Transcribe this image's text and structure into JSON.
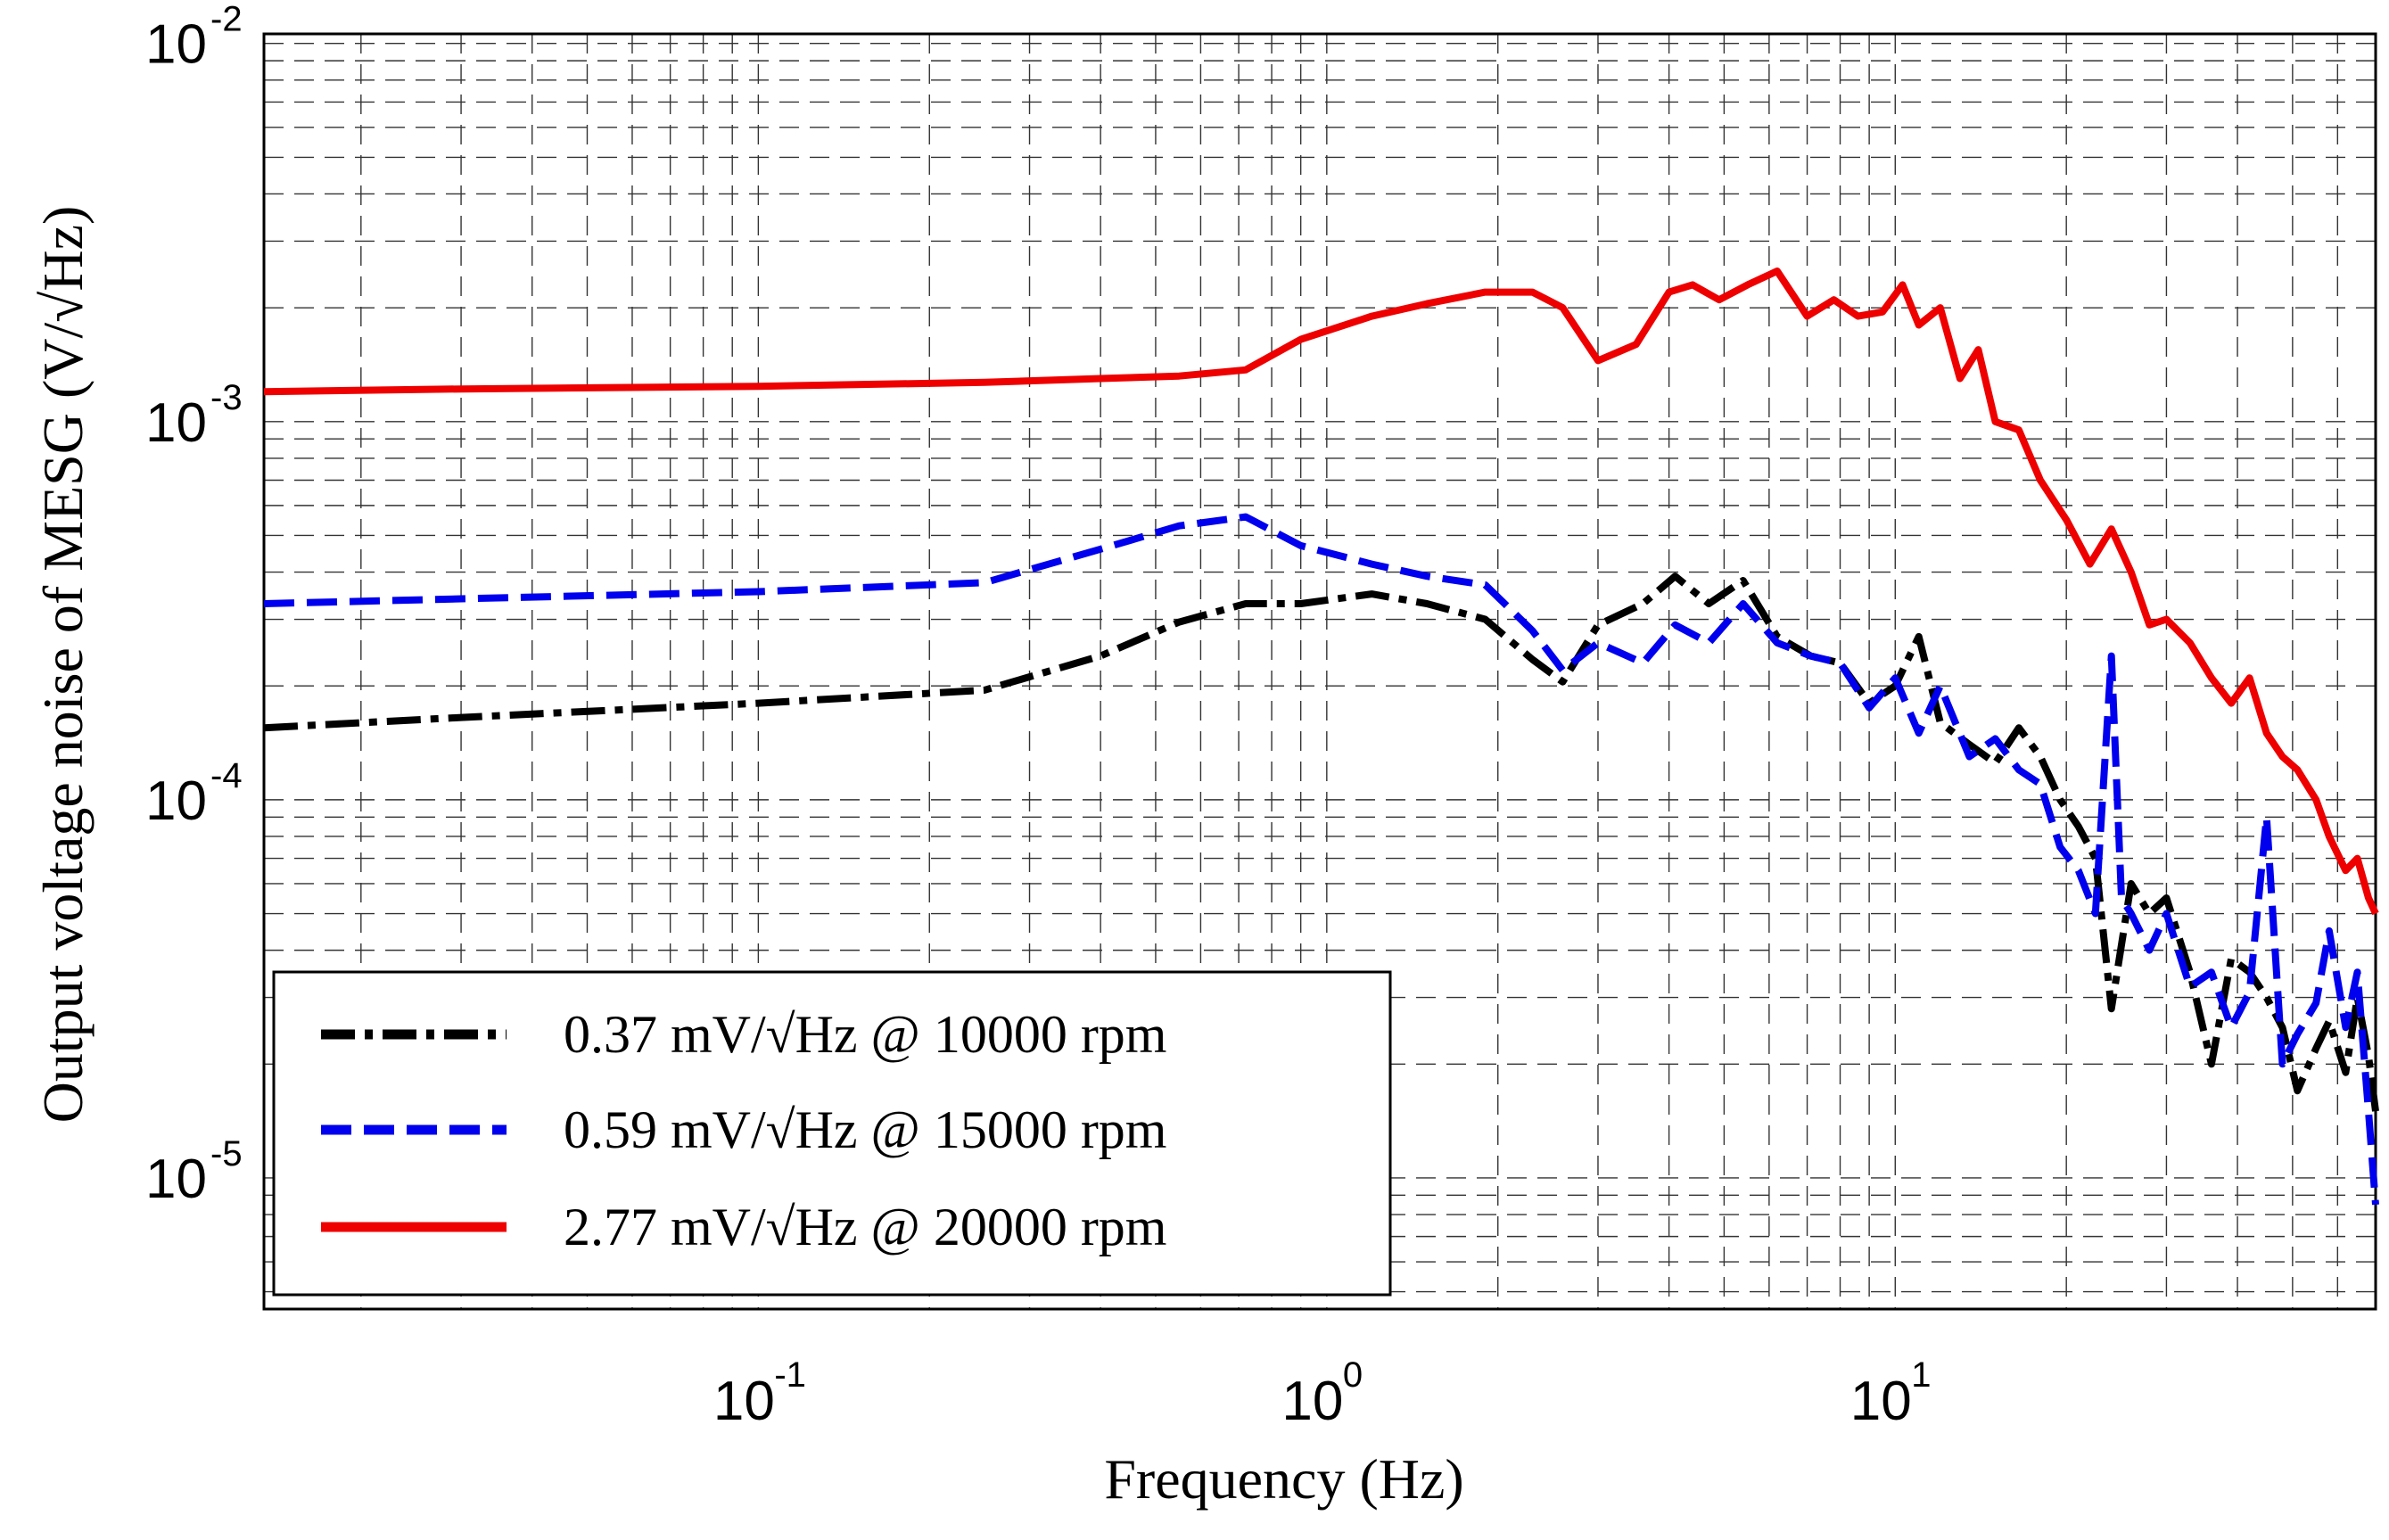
{
  "chart_data": {
    "type": "line",
    "xscale": "log",
    "yscale": "log",
    "xlabel": "Frequency (Hz)",
    "ylabel": "Output voltage noise of MESG (V/√Hz)",
    "xlim": [
      0.0135,
      70
    ],
    "ylim": [
      4.5e-06,
      0.0106
    ],
    "grid": true,
    "legend_position": "bottom-left",
    "x_ticks": [
      {
        "value": 0.1,
        "base": "10",
        "exp": "-1"
      },
      {
        "value": 1,
        "base": "10",
        "exp": "0"
      },
      {
        "value": 10,
        "base": "10",
        "exp": "1"
      }
    ],
    "y_ticks": [
      {
        "value": 1e-05,
        "base": "10",
        "exp": "-5"
      },
      {
        "value": 0.0001,
        "base": "10",
        "exp": "-4"
      },
      {
        "value": 0.001,
        "base": "10",
        "exp": "-3"
      },
      {
        "value": 0.01,
        "base": "10",
        "exp": "-2"
      }
    ],
    "series": [
      {
        "name": "0.37 mV/√Hz @ 10000 rpm",
        "color": "#000000",
        "style": "dashdot",
        "x": [
          0.0135,
          0.03,
          0.1,
          0.25,
          0.4,
          0.55,
          0.72,
          0.9,
          1.2,
          1.5,
          1.9,
          2.3,
          2.6,
          3.0,
          3.6,
          4.1,
          4.7,
          5.4,
          6.2,
          7.1,
          8.0,
          9.0,
          10.0,
          11.0,
          12.0,
          13.5,
          15.0,
          16.5,
          18.0,
          19.5,
          21.0,
          22.5,
          24.0,
          26.0,
          28.0,
          30.0,
          33.0,
          36.0,
          39.0,
          42.0,
          45.0,
          48.0,
          51.0,
          55.0,
          58.0,
          62.0,
          65.0,
          68.0,
          70.0
        ],
        "values": [
          0.000155,
          0.000165,
          0.00018,
          0.000195,
          0.00024,
          0.000295,
          0.00033,
          0.00033,
          0.00035,
          0.00033,
          0.0003,
          0.000235,
          0.000205,
          0.00029,
          0.00033,
          0.00039,
          0.00033,
          0.00038,
          0.00027,
          0.00024,
          0.00023,
          0.00018,
          0.0002,
          0.00027,
          0.00016,
          0.00014,
          0.000125,
          0.000155,
          0.00013,
          0.0001,
          8.5e-05,
          7e-05,
          2.8e-05,
          6e-05,
          5e-05,
          5.5e-05,
          3.5e-05,
          2e-05,
          3.8e-05,
          3.5e-05,
          3e-05,
          2.5e-05,
          1.7e-05,
          2.2e-05,
          2.6e-05,
          1.9e-05,
          3e-05,
          2.1e-05,
          1.5e-05
        ]
      },
      {
        "name": "0.59 mV/√Hz @ 15000 rpm",
        "color": "#0000ee",
        "style": "dashed",
        "x": [
          0.0135,
          0.03,
          0.1,
          0.25,
          0.4,
          0.55,
          0.72,
          0.9,
          1.2,
          1.5,
          1.9,
          2.3,
          2.6,
          3.0,
          3.6,
          4.1,
          4.7,
          5.4,
          6.2,
          7.1,
          8.0,
          9.0,
          10.0,
          11.0,
          12.0,
          13.5,
          15.0,
          16.5,
          18.0,
          19.5,
          21.0,
          22.5,
          24.0,
          25.0,
          26.0,
          28.0,
          30.0,
          33.0,
          36.0,
          39.0,
          42.0,
          45.0,
          48.0,
          51.0,
          55.0,
          58.0,
          62.0,
          65.0,
          68.0,
          70.0
        ],
        "values": [
          0.00033,
          0.00034,
          0.000355,
          0.000375,
          0.00046,
          0.00053,
          0.00056,
          0.00047,
          0.00042,
          0.00039,
          0.00037,
          0.00028,
          0.00022,
          0.00026,
          0.00023,
          0.00029,
          0.00026,
          0.00033,
          0.00026,
          0.00024,
          0.00023,
          0.000175,
          0.00021,
          0.00015,
          0.0002,
          0.00013,
          0.000145,
          0.00012,
          0.00011,
          7.5e-05,
          6.5e-05,
          5e-05,
          0.00024,
          5.5e-05,
          5e-05,
          4e-05,
          5e-05,
          3.2e-05,
          3.5e-05,
          2.5e-05,
          3.1e-05,
          9e-05,
          2e-05,
          2.4e-05,
          2.9e-05,
          4.5e-05,
          2.5e-05,
          3.5e-05,
          1.5e-05,
          8.5e-06
        ]
      },
      {
        "name": "2.77 mV/√Hz @ 20000 rpm",
        "color": "#ee0000",
        "style": "solid",
        "x": [
          0.0135,
          0.03,
          0.1,
          0.25,
          0.4,
          0.55,
          0.72,
          0.9,
          1.2,
          1.5,
          1.9,
          2.3,
          2.6,
          3.0,
          3.5,
          4.0,
          4.4,
          4.9,
          5.5,
          6.2,
          7.0,
          7.8,
          8.6,
          9.5,
          10.3,
          11.0,
          12.0,
          13.0,
          14.0,
          15.0,
          16.5,
          18.0,
          20.0,
          22.0,
          24.0,
          26.0,
          28.0,
          30.0,
          33.0,
          36.0,
          39.0,
          42.0,
          45.0,
          48.0,
          51.0,
          55.0,
          58.0,
          62.0,
          65.0,
          68.0,
          70.0
        ],
        "values": [
          0.0012,
          0.00122,
          0.00124,
          0.00127,
          0.0013,
          0.00132,
          0.00137,
          0.00165,
          0.0019,
          0.00205,
          0.0022,
          0.0022,
          0.002,
          0.00145,
          0.0016,
          0.0022,
          0.0023,
          0.0021,
          0.0023,
          0.0025,
          0.0019,
          0.0021,
          0.0019,
          0.00195,
          0.0023,
          0.0018,
          0.002,
          0.0013,
          0.00155,
          0.001,
          0.00095,
          0.0007,
          0.00055,
          0.00042,
          0.00052,
          0.0004,
          0.00029,
          0.0003,
          0.00026,
          0.00021,
          0.00018,
          0.00021,
          0.00015,
          0.00013,
          0.00012,
          0.0001,
          8e-05,
          6.5e-05,
          7e-05,
          5.5e-05,
          5e-05
        ]
      }
    ]
  }
}
